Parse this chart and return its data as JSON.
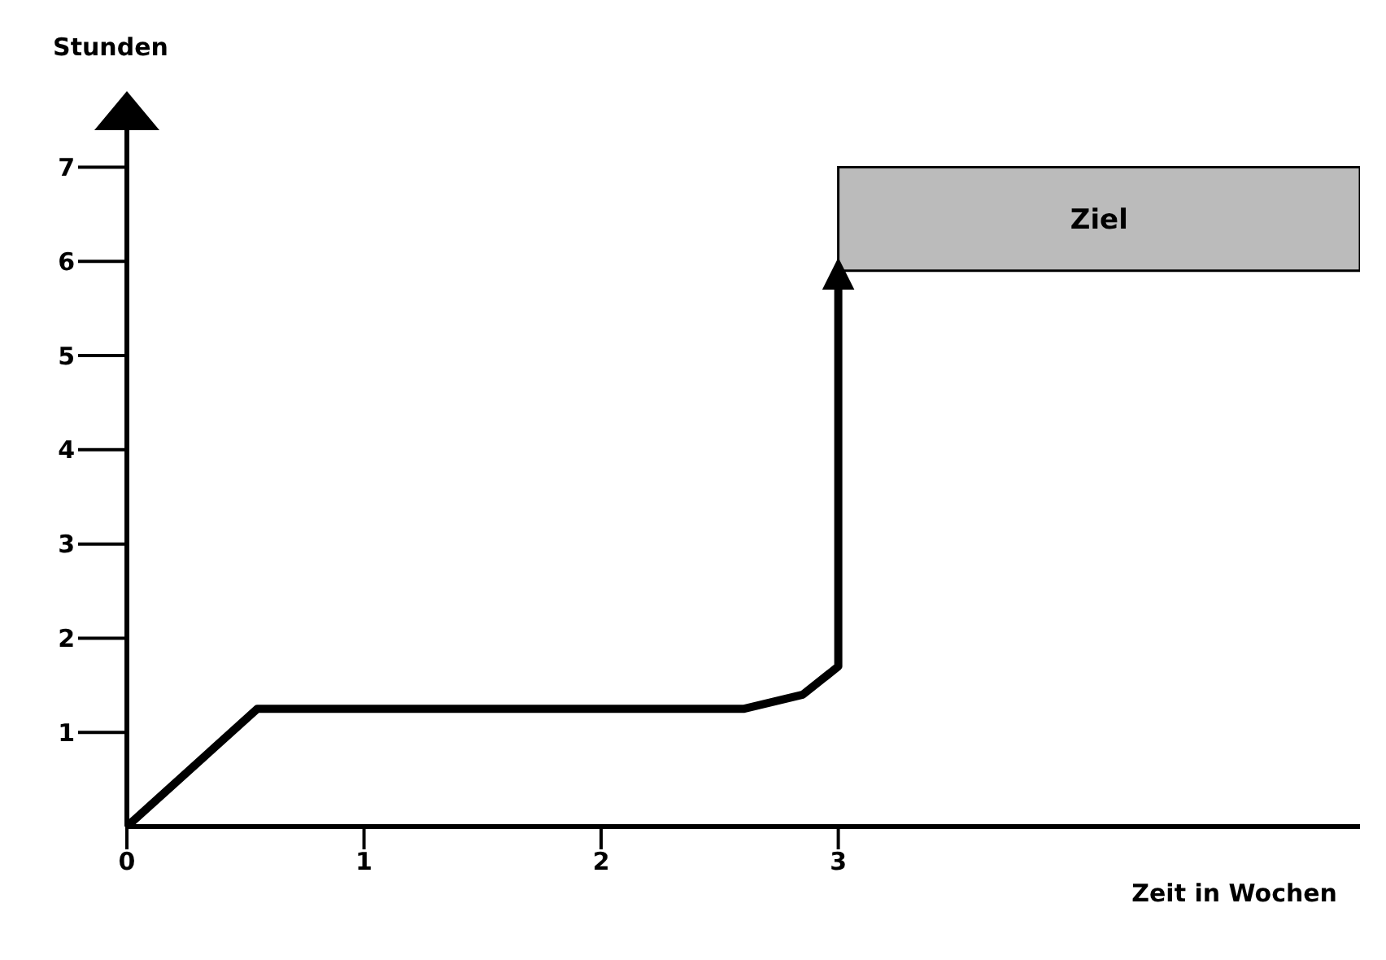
{
  "chart_data": {
    "type": "line",
    "xlabel": "Zeit in Wochen",
    "ylabel": "Stunden",
    "xlim": [
      0,
      5.2
    ],
    "xticks": [
      0,
      1,
      2,
      3
    ],
    "ylim": [
      0,
      7.6
    ],
    "yticks": [
      1,
      2,
      3,
      4,
      5,
      6,
      7
    ],
    "grid": false,
    "legend": false,
    "marker": "none",
    "line_style": "solid",
    "series": [
      {
        "color": "#000000",
        "x": [
          0,
          0.55,
          2.6,
          2.85,
          3,
          3
        ],
        "values": [
          0,
          1.25,
          1.25,
          1.4,
          1.7,
          5.8
        ]
      }
    ],
    "bands": [
      {
        "axis": "y",
        "from": 5.9,
        "to": 7,
        "label": "Ziel",
        "color": "#bbbbbb"
      }
    ]
  }
}
